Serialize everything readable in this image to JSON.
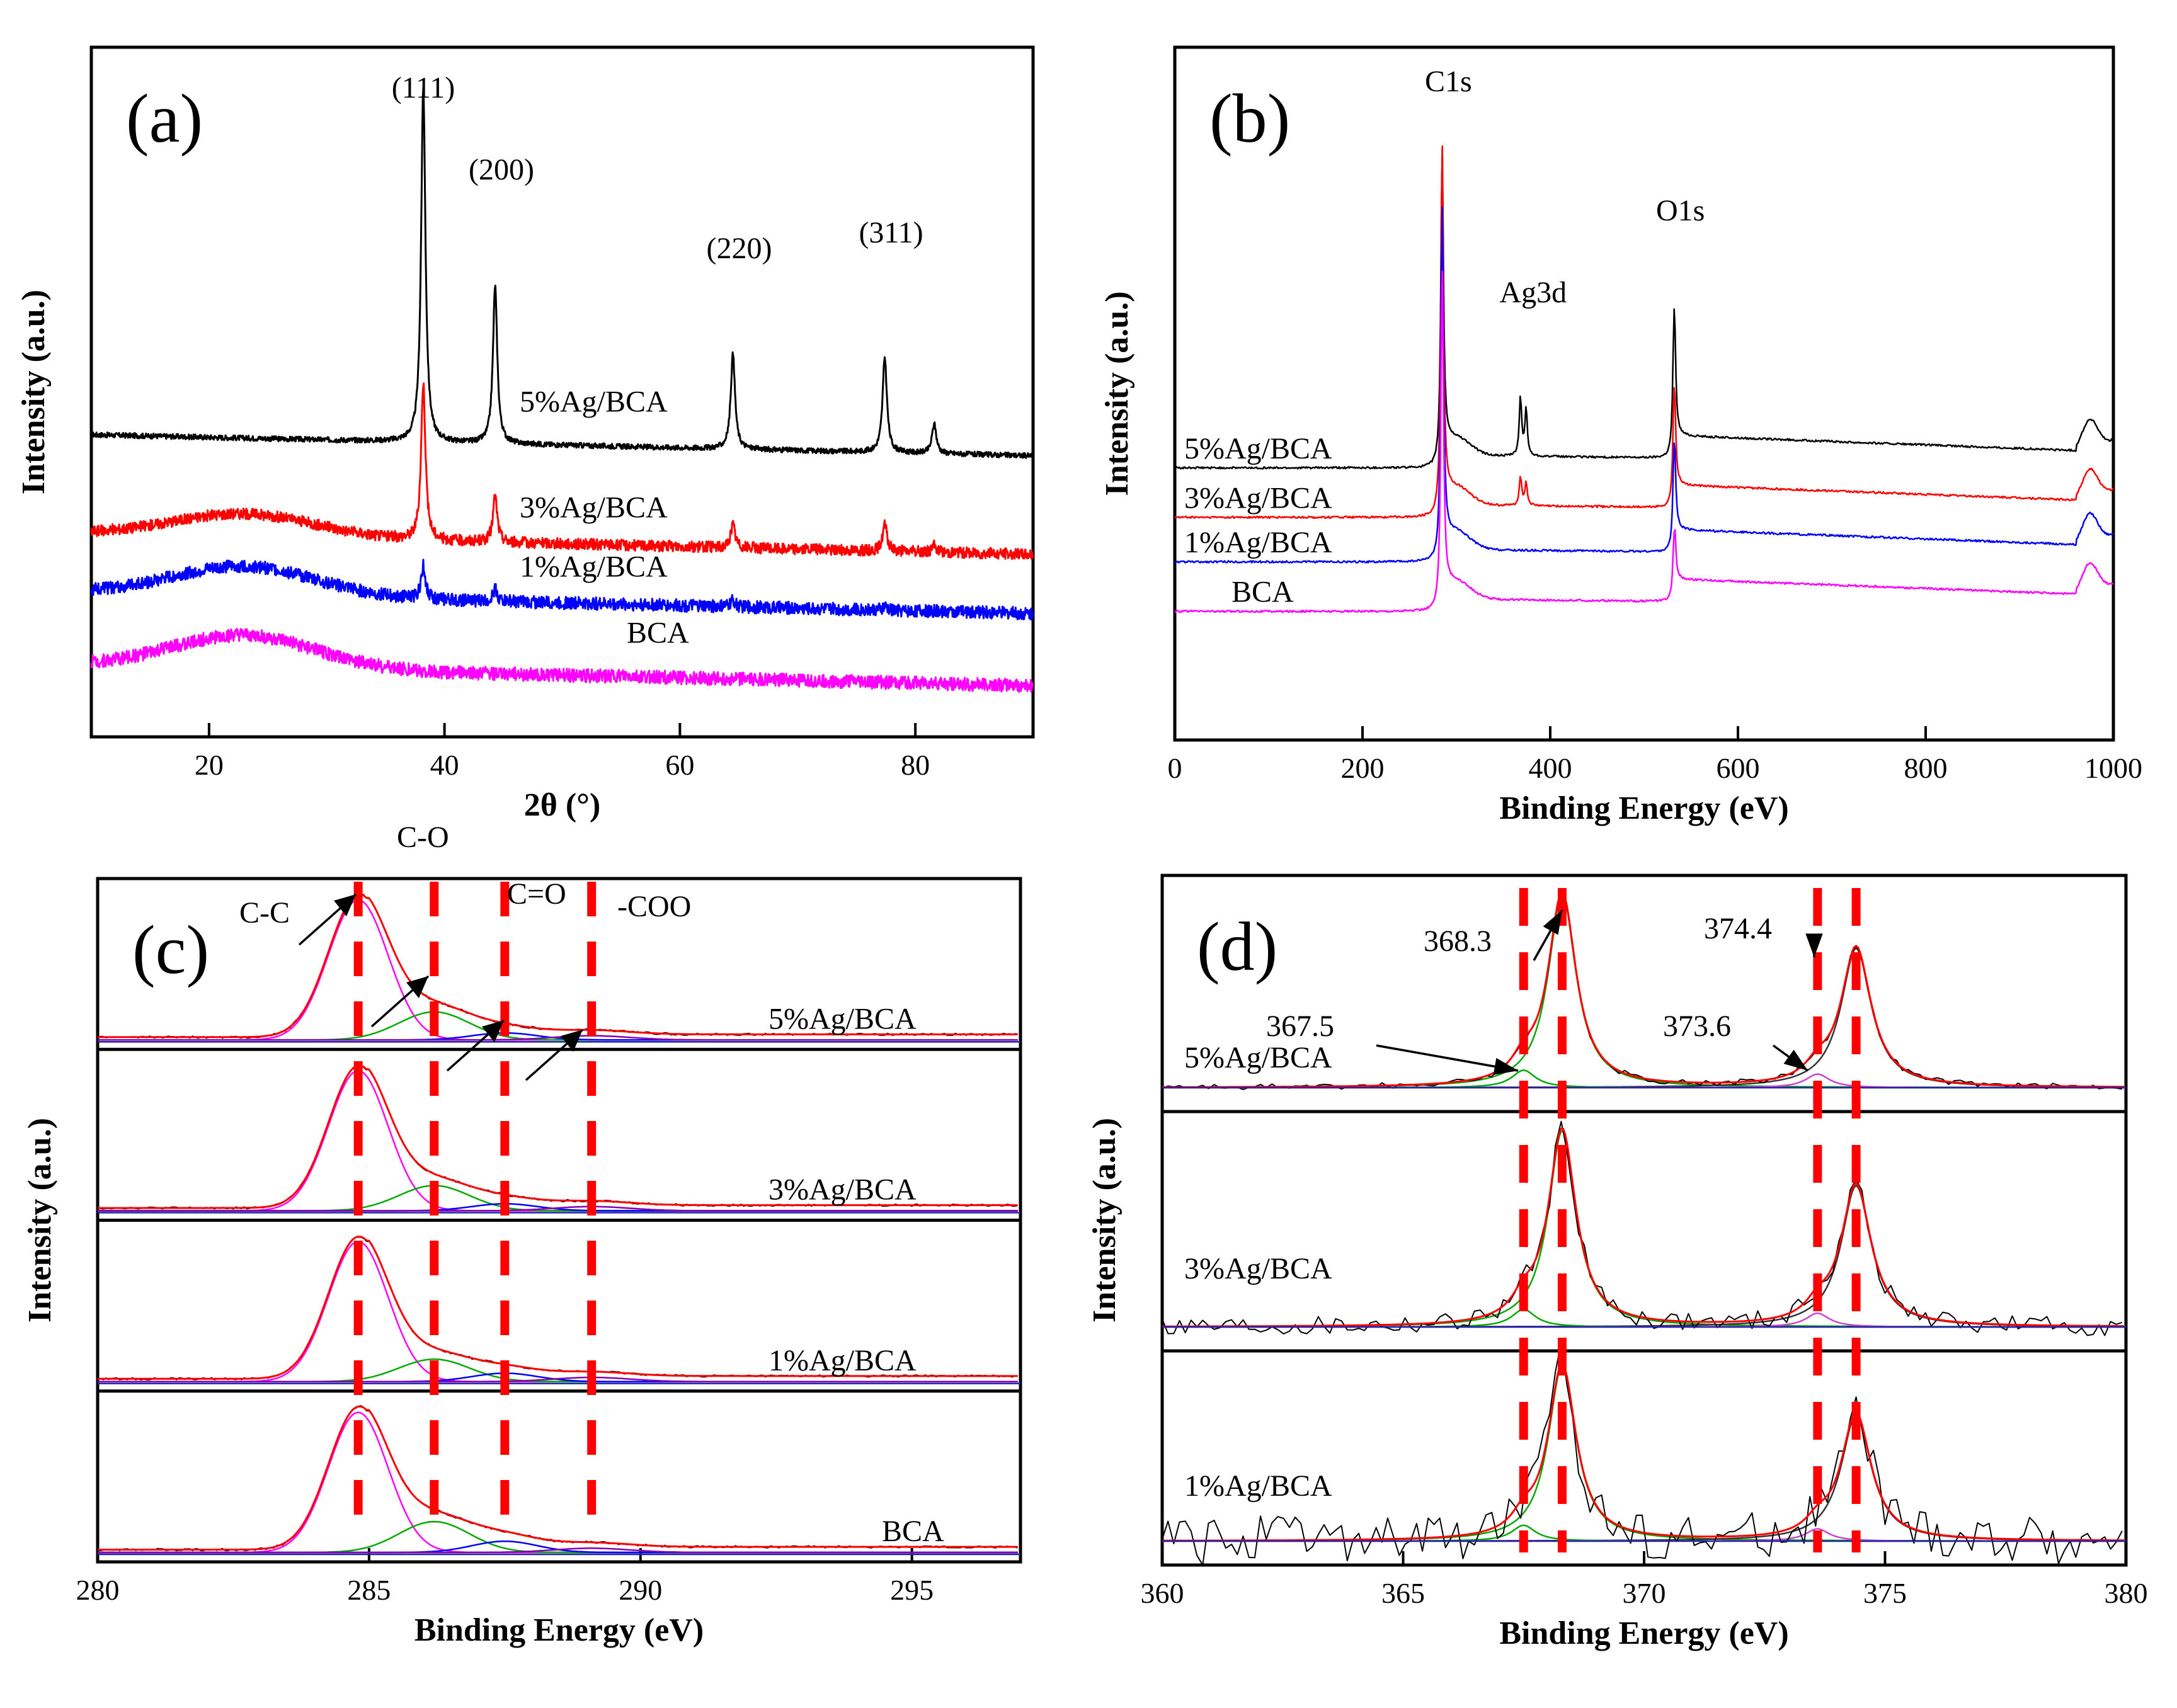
{
  "chart_data": [
    {
      "id": "a",
      "type": "line",
      "panel_label": "(a)",
      "xlabel": "2θ  (°)",
      "ylabel": "Intensity   (a.u.)",
      "xlim": [
        10,
        90
      ],
      "xticks": [
        20,
        40,
        60,
        80
      ],
      "series": [
        {
          "name": "5%Ag/BCA",
          "label": "5%Ag/BCA",
          "color": "#000000",
          "baseline": 4.6,
          "hump": 0.0,
          "peaks": [
            [
              38.2,
              5.4
            ],
            [
              44.3,
              2.4
            ],
            [
              64.5,
              1.45
            ],
            [
              77.4,
              1.45
            ],
            [
              81.6,
              0.45
            ]
          ]
        },
        {
          "name": "3%Ag/BCA",
          "label": "3%Ag/BCA",
          "color": "#ff0000",
          "baseline": 3.1,
          "hump": 0.35,
          "peaks": [
            [
              38.2,
              2.4
            ],
            [
              44.3,
              0.7
            ],
            [
              64.5,
              0.35
            ],
            [
              77.4,
              0.4
            ],
            [
              81.6,
              0.1
            ]
          ]
        },
        {
          "name": "1%Ag/BCA",
          "label": "1%Ag/BCA",
          "color": "#0000ff",
          "baseline": 2.2,
          "hump": 0.45,
          "peaks": [
            [
              38.2,
              0.5
            ],
            [
              44.3,
              0.2
            ],
            [
              64.5,
              0.1
            ],
            [
              77.4,
              0.05
            ]
          ]
        },
        {
          "name": "BCA",
          "label": "BCA",
          "color": "#ff00ff",
          "baseline": 1.1,
          "hump": 0.5,
          "peaks": []
        }
      ],
      "annotations": [
        {
          "text": "(111)",
          "x": 38.2
        },
        {
          "text": "(200)",
          "x": 44.3
        },
        {
          "text": "(220)",
          "x": 64.5
        },
        {
          "text": "(311)",
          "x": 77.4
        }
      ]
    },
    {
      "id": "b",
      "type": "line",
      "panel_label": "(b)",
      "xlabel": "Binding Energy  (eV)",
      "ylabel": "Intensity   (a.u.)",
      "xlim": [
        0,
        1000
      ],
      "xticks": [
        0,
        200,
        400,
        600,
        800,
        1000
      ],
      "series": [
        {
          "name": "5%Ag/BCA",
          "label": "5%Ag/BCA",
          "color": "#000000",
          "baseline": 5.5,
          "c1s": 6.6,
          "o1s": 3.0,
          "ag": 1.2
        },
        {
          "name": "3%Ag/BCA",
          "label": "3%Ag/BCA",
          "color": "#ff0000",
          "baseline": 4.5,
          "c1s": 7.6,
          "o1s": 2.4,
          "ag": 0.6
        },
        {
          "name": "1%Ag/BCA",
          "label": "1%Ag/BCA",
          "color": "#0000ff",
          "baseline": 3.6,
          "c1s": 7.3,
          "o1s": 2.2,
          "ag": 0.0
        },
        {
          "name": "BCA",
          "label": "BCA",
          "color": "#ff00ff",
          "baseline": 2.6,
          "c1s": 7.0,
          "o1s": 1.4,
          "ag": 0.0
        }
      ],
      "annotations": [
        {
          "text": "C1s",
          "x": 284.8
        },
        {
          "text": "Ag3d",
          "x": 368.3
        },
        {
          "text": "O1s",
          "x": 532
        }
      ]
    },
    {
      "id": "c",
      "type": "line",
      "panel_label": "(c)",
      "xlabel": "Binding Energy  (eV)",
      "ylabel": "Intensity   (a.u.)",
      "xlim": [
        280,
        297
      ],
      "xticks": [
        280,
        285,
        290,
        295
      ],
      "components": [
        {
          "name": "C-C",
          "center": 284.8
        },
        {
          "name": "C-O",
          "center": 286.2
        },
        {
          "name": "C=O",
          "center": 287.5
        },
        {
          "name": "-COO",
          "center": 289.1
        }
      ],
      "samples": [
        "5%Ag/BCA",
        "3%Ag/BCA",
        "1%Ag/BCA",
        "BCA"
      ]
    },
    {
      "id": "d",
      "type": "line",
      "panel_label": "(d)",
      "xlabel": "Binding Energy  (eV)",
      "ylabel": "Intensity   (a.u.)",
      "xlim": [
        360,
        380
      ],
      "xticks": [
        360,
        365,
        370,
        375,
        380
      ],
      "peak_positions": [
        {
          "label": "367.5",
          "x": 367.5
        },
        {
          "label": "368.3",
          "x": 368.3
        },
        {
          "label": "373.6",
          "x": 373.6
        },
        {
          "label": "374.4",
          "x": 374.4
        }
      ],
      "samples": [
        "5%Ag/BCA",
        "3%Ag/BCA",
        "1%Ag/BCA"
      ]
    }
  ]
}
